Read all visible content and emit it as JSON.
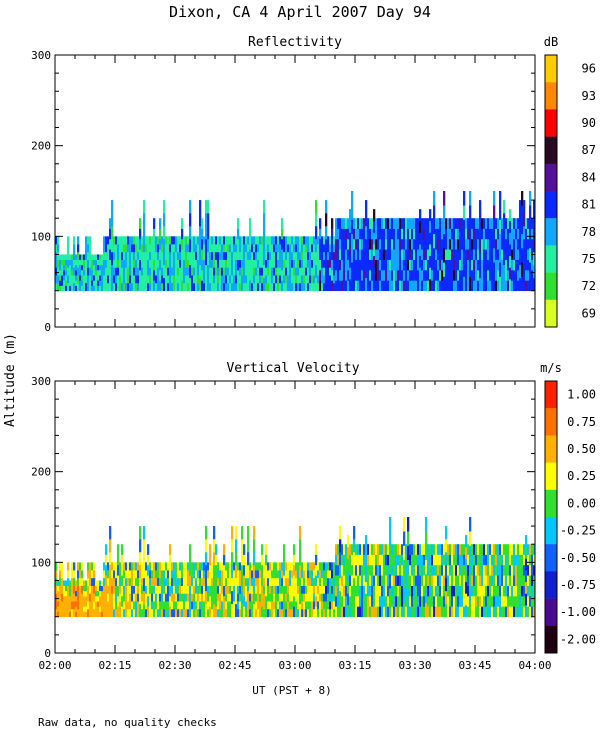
{
  "title": "Dixon, CA   4 April 2007   Day  94",
  "ylabel": "Altitude (m)",
  "xlabel": "UT  (PST + 8)",
  "note": "Raw data, no quality checks",
  "x_ticks": [
    "02:00",
    "02:15",
    "02:30",
    "02:45",
    "03:00",
    "03:15",
    "03:30",
    "03:45",
    "04:00"
  ],
  "y_ticks": [
    "0",
    "100",
    "200",
    "300"
  ],
  "chart_data": [
    {
      "type": "heatmap",
      "title": "Reflectivity",
      "colorbar_unit": "dB",
      "colorbar_labels": [
        "96",
        "93",
        "90",
        "87",
        "84",
        "81",
        "78",
        "75",
        "72",
        "69"
      ],
      "colorbar_colors": [
        "#ffcc00",
        "#ff8800",
        "#ff0000",
        "#2a0a20",
        "#55109a",
        "#0a2aff",
        "#10a8ff",
        "#20f0a0",
        "#30e030",
        "#d8ff20"
      ],
      "xlim": [
        "02:00",
        "04:00"
      ],
      "ylim": [
        0,
        300
      ],
      "data_range_altitude_m": [
        40,
        180
      ],
      "dominant_values": [
        "78",
        "81"
      ],
      "grid": false
    },
    {
      "type": "heatmap",
      "title": "Vertical Velocity",
      "colorbar_unit": "m/s",
      "colorbar_labels": [
        "1.00",
        "0.75",
        "0.50",
        "0.25",
        "0.00",
        "-0.25",
        "-0.50",
        "-0.75",
        "-1.00",
        "-2.00"
      ],
      "colorbar_colors": [
        "#ff2000",
        "#ff7000",
        "#ffb000",
        "#ffff00",
        "#30e030",
        "#00c8ff",
        "#1060ff",
        "#1020d0",
        "#4a0a90",
        "#200010"
      ],
      "xlim": [
        "02:00",
        "04:00"
      ],
      "ylim": [
        0,
        300
      ],
      "data_range_altitude_m": [
        40,
        180
      ],
      "dominant_values": [
        "0.50",
        "0.25",
        "0.00"
      ],
      "grid": false
    }
  ]
}
